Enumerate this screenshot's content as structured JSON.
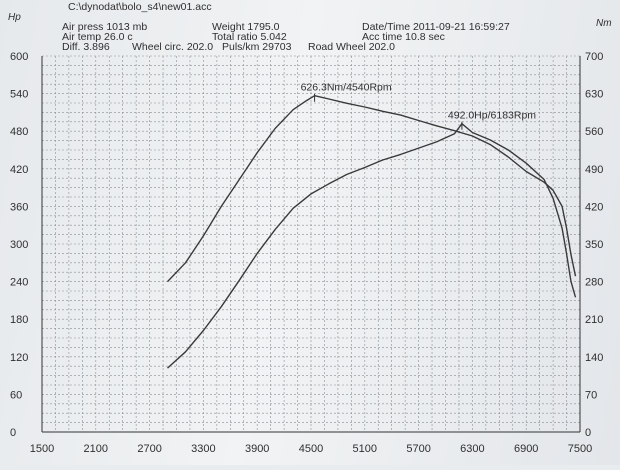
{
  "header": {
    "file_path": "C:\\dynodat\\bolo_s4\\new01.acc",
    "air_press": "Air press  1013 mb",
    "air_temp": "Air temp  26.0 c",
    "diff": "Diff.   3.896",
    "wheel_circ": "Wheel circ. 202.0",
    "weight": "Weight   1795.0",
    "total_ratio": "Total ratio 5.042",
    "puls_km": "Puls/km  29703",
    "datetime": "Date/Time  2011-09-21 16:59:27",
    "acc_time": "Acc time   10.8 sec",
    "road_wheel": "Road Wheel 202.0"
  },
  "chart_data": {
    "type": "line",
    "left_unit": "Hp",
    "right_unit": "Nm",
    "x_ticks": [
      "1500",
      "2100",
      "2700",
      "3300",
      "3900",
      "4500",
      "5100",
      "5700",
      "6300",
      "6900",
      "7500"
    ],
    "y_left_ticks": [
      "0",
      "60",
      "120",
      "180",
      "240",
      "300",
      "360",
      "420",
      "480",
      "540",
      "600"
    ],
    "y_right_ticks": [
      "0",
      "70",
      "140",
      "210",
      "280",
      "350",
      "420",
      "490",
      "560",
      "630",
      "700"
    ],
    "xlim": [
      1500,
      7500
    ],
    "ylim_left": [
      0,
      600
    ],
    "ylim_right": [
      0,
      700
    ],
    "series": [
      {
        "axis": "right",
        "unit": "Nm",
        "x": [
          2900,
          3100,
          3300,
          3500,
          3700,
          3900,
          4100,
          4300,
          4450,
          4540,
          4700,
          4900,
          5100,
          5300,
          5500,
          5700,
          5900,
          6100,
          6300,
          6500,
          6700,
          6900,
          7100,
          7200,
          7300,
          7350,
          7400,
          7450
        ],
        "y": [
          280,
          315,
          365,
          420,
          470,
          520,
          565,
          600,
          617,
          626,
          620,
          612,
          605,
          597,
          590,
          580,
          570,
          561,
          551,
          535,
          512,
          485,
          465,
          450,
          420,
          380,
          330,
          290
        ]
      },
      {
        "axis": "left",
        "unit": "Hp",
        "x": [
          2900,
          3100,
          3300,
          3500,
          3700,
          3900,
          4100,
          4300,
          4500,
          4700,
          4900,
          5100,
          5300,
          5500,
          5700,
          5900,
          6100,
          6183,
          6300,
          6500,
          6700,
          6900,
          7100,
          7200,
          7300,
          7350,
          7400,
          7450
        ],
        "y": [
          102,
          128,
          162,
          200,
          242,
          285,
          323,
          357,
          380,
          396,
          411,
          422,
          434,
          443,
          453,
          463,
          476,
          492,
          478,
          466,
          450,
          429,
          403,
          373,
          325,
          285,
          240,
          215
        ]
      }
    ],
    "annotations": [
      {
        "text": "626.3Nm/4540Rpm",
        "x": 4540,
        "y": 626,
        "axis": "right"
      },
      {
        "text": "492.0Hp/6183Rpm",
        "x": 6183,
        "y": 492,
        "axis": "left"
      }
    ],
    "grid": true
  }
}
